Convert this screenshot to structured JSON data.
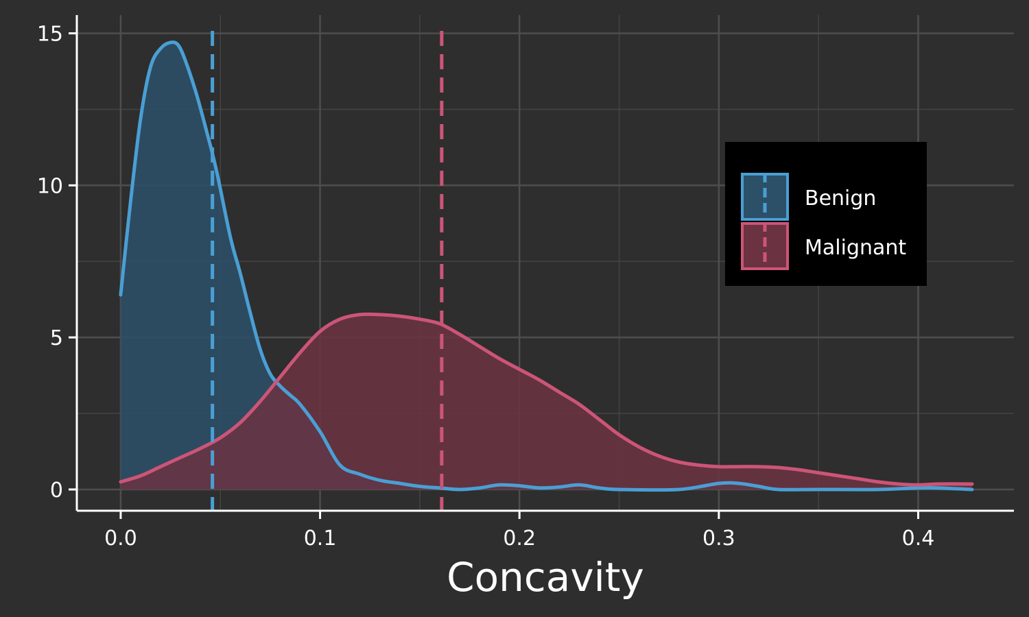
{
  "chart_data": {
    "type": "area",
    "title": "",
    "xlabel": "Concavity",
    "ylabel": "",
    "xlim": [
      -0.022,
      0.448
    ],
    "ylim": [
      -0.7,
      15.6
    ],
    "x_ticks": [
      0.0,
      0.1,
      0.2,
      0.3,
      0.4
    ],
    "x_tick_labels": [
      "0.0",
      "0.1",
      "0.2",
      "0.3",
      "0.4"
    ],
    "y_ticks": [
      0,
      5,
      10,
      15
    ],
    "y_tick_labels": [
      "0",
      "5",
      "10",
      "15"
    ],
    "grid": true,
    "legend_position": "right",
    "background": "#2e2e2e",
    "series": [
      {
        "name": "Benign",
        "color": "#4a9fd4",
        "fill": "#2c5068",
        "mean": 0.046,
        "x": [
          0,
          0.005,
          0.01,
          0.015,
          0.02,
          0.025,
          0.029,
          0.033,
          0.038,
          0.043,
          0.048,
          0.055,
          0.06,
          0.065,
          0.07,
          0.075,
          0.08,
          0.085,
          0.09,
          0.1,
          0.11,
          0.12,
          0.13,
          0.14,
          0.15,
          0.16,
          0.17,
          0.18,
          0.19,
          0.2,
          0.21,
          0.22,
          0.23,
          0.24,
          0.25,
          0.28,
          0.3,
          0.31,
          0.32,
          0.33,
          0.35,
          0.38,
          0.4,
          0.41,
          0.427
        ],
        "y": [
          6.4,
          9.5,
          12.2,
          13.9,
          14.5,
          14.7,
          14.6,
          14.0,
          13.0,
          11.8,
          10.5,
          8.3,
          7.1,
          5.8,
          4.6,
          3.8,
          3.4,
          3.1,
          2.8,
          1.9,
          0.8,
          0.5,
          0.3,
          0.2,
          0.1,
          0.05,
          0.0,
          0.05,
          0.15,
          0.12,
          0.05,
          0.08,
          0.15,
          0.05,
          0.0,
          0.0,
          0.2,
          0.2,
          0.1,
          0.0,
          0.0,
          0.0,
          0.05,
          0.05,
          0.0
        ]
      },
      {
        "name": "Malignant",
        "color": "#cc5577",
        "fill": "#6b3242",
        "mean": 0.161,
        "x": [
          0,
          0.01,
          0.02,
          0.03,
          0.04,
          0.05,
          0.06,
          0.07,
          0.08,
          0.09,
          0.1,
          0.11,
          0.12,
          0.13,
          0.14,
          0.15,
          0.16,
          0.17,
          0.18,
          0.19,
          0.2,
          0.21,
          0.22,
          0.23,
          0.24,
          0.25,
          0.26,
          0.27,
          0.28,
          0.29,
          0.3,
          0.31,
          0.32,
          0.33,
          0.34,
          0.35,
          0.36,
          0.37,
          0.38,
          0.39,
          0.4,
          0.41,
          0.427
        ],
        "y": [
          0.25,
          0.45,
          0.75,
          1.05,
          1.35,
          1.7,
          2.2,
          2.9,
          3.7,
          4.5,
          5.2,
          5.6,
          5.75,
          5.75,
          5.7,
          5.6,
          5.45,
          5.1,
          4.7,
          4.3,
          3.95,
          3.6,
          3.2,
          2.8,
          2.3,
          1.8,
          1.4,
          1.1,
          0.9,
          0.8,
          0.75,
          0.75,
          0.75,
          0.72,
          0.65,
          0.55,
          0.45,
          0.35,
          0.25,
          0.18,
          0.15,
          0.18,
          0.18
        ]
      }
    ]
  }
}
